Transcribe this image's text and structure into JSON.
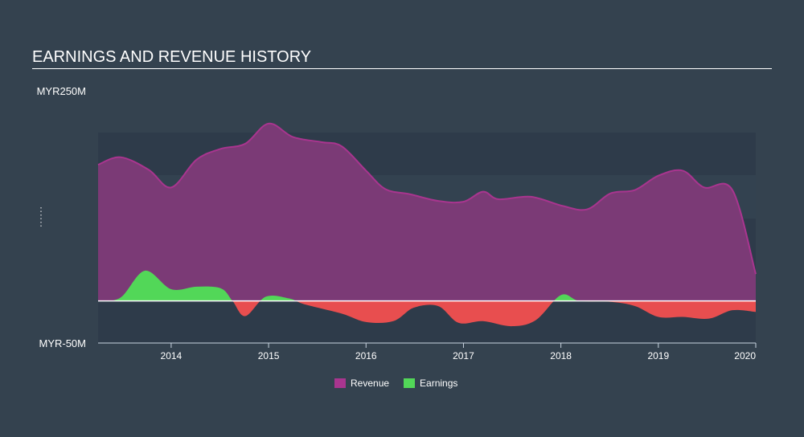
{
  "chart_data": {
    "type": "area",
    "title": "EARNINGS AND REVENUE HISTORY",
    "ylim": [
      -50,
      250
    ],
    "ytick_labels": [
      "MYR250M",
      "MYR-50M"
    ],
    "xlim": [
      2013.25,
      2020.0
    ],
    "xticks": [
      2014,
      2015,
      2016,
      2017,
      2018,
      2019,
      2020
    ],
    "xtick_labels": [
      "2014",
      "2015",
      "2016",
      "2017",
      "2018",
      "2019",
      "2020"
    ],
    "legend_position": "bottom-center",
    "colors": {
      "revenue": "#7b3a76",
      "revenue_line": "#a9358f",
      "earnings_pos": "#52d758",
      "earnings_neg": "#e84e4f"
    },
    "series": [
      {
        "name": "Revenue",
        "x": [
          2013.25,
          2013.48,
          2013.77,
          2014.0,
          2014.26,
          2014.51,
          2014.76,
          2015.0,
          2015.25,
          2015.54,
          2015.75,
          2016.0,
          2016.2,
          2016.45,
          2016.74,
          2017.0,
          2017.2,
          2017.36,
          2017.69,
          2018.02,
          2018.27,
          2018.51,
          2018.76,
          2019.0,
          2019.25,
          2019.47,
          2019.76,
          2020.0
        ],
        "values": [
          162,
          171,
          156,
          135,
          168,
          181,
          187,
          211,
          195,
          189,
          184,
          155,
          133,
          127,
          119,
          118,
          130,
          121,
          124,
          113,
          109,
          128,
          132,
          149,
          155,
          135,
          132,
          32
        ]
      },
      {
        "name": "Earnings",
        "x": [
          2013.25,
          2013.48,
          2013.73,
          2014.0,
          2014.26,
          2014.51,
          2014.63,
          2014.76,
          2014.97,
          2015.21,
          2015.37,
          2015.75,
          2016.0,
          2016.28,
          2016.49,
          2016.74,
          2016.95,
          2017.2,
          2017.49,
          2017.74,
          2018.0,
          2018.19,
          2018.51,
          2018.76,
          2019.0,
          2019.25,
          2019.52,
          2019.76,
          2020.0
        ],
        "values": [
          0,
          4,
          36,
          14,
          17,
          15,
          0,
          -18,
          5,
          3,
          -4,
          -15,
          -25,
          -24,
          -8,
          -6,
          -26,
          -24,
          -30,
          -23,
          7,
          0,
          -1,
          -6,
          -19,
          -19,
          -21,
          -11,
          -13
        ]
      }
    ]
  }
}
